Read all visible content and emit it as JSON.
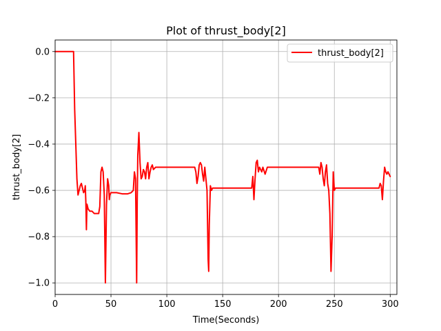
{
  "chart_data": {
    "type": "line",
    "title": "Plot of thrust_body[2]",
    "xlabel": "Time(Seconds)",
    "ylabel": "thrust_body[2]",
    "xlim": [
      0,
      306
    ],
    "ylim": [
      -1.05,
      0.05
    ],
    "xticks": [
      0,
      50,
      100,
      150,
      200,
      250,
      300
    ],
    "yticks": [
      0.0,
      -0.2,
      -0.4,
      -0.6,
      -0.8,
      -1.0
    ],
    "ytick_labels": [
      "0.0",
      "−0.2",
      "−0.4",
      "−0.6",
      "−0.8",
      "−1.0"
    ],
    "xtick_labels": [
      "0",
      "50",
      "100",
      "150",
      "200",
      "250",
      "300"
    ],
    "grid": true,
    "legend": "top-right",
    "colors": {
      "series": "#ff0000"
    },
    "series": [
      {
        "name": "thrust_body[2]",
        "points": [
          [
            0,
            0.0
          ],
          [
            15,
            0.0
          ],
          [
            16.5,
            0.0
          ],
          [
            17.5,
            -0.25
          ],
          [
            18.5,
            -0.4
          ],
          [
            19.5,
            -0.55
          ],
          [
            20.5,
            -0.62
          ],
          [
            21.5,
            -0.6
          ],
          [
            22.5,
            -0.58
          ],
          [
            23.5,
            -0.57
          ],
          [
            24.5,
            -0.59
          ],
          [
            25.5,
            -0.61
          ],
          [
            26.5,
            -0.6
          ],
          [
            27,
            -0.58
          ],
          [
            27.5,
            -0.65
          ],
          [
            28,
            -0.77
          ],
          [
            28.5,
            -0.66
          ],
          [
            29.5,
            -0.68
          ],
          [
            31,
            -0.69
          ],
          [
            33,
            -0.69
          ],
          [
            35,
            -0.7
          ],
          [
            37,
            -0.7
          ],
          [
            39,
            -0.7
          ],
          [
            40,
            -0.67
          ],
          [
            41,
            -0.52
          ],
          [
            42,
            -0.5
          ],
          [
            43,
            -0.52
          ],
          [
            44,
            -0.62
          ],
          [
            45,
            -1.0
          ],
          [
            46,
            -0.66
          ],
          [
            47,
            -0.55
          ],
          [
            48,
            -0.58
          ],
          [
            48.5,
            -0.64
          ],
          [
            49,
            -0.62
          ],
          [
            50,
            -0.61
          ],
          [
            55,
            -0.61
          ],
          [
            60,
            -0.615
          ],
          [
            65,
            -0.615
          ],
          [
            68,
            -0.61
          ],
          [
            70,
            -0.6
          ],
          [
            71,
            -0.52
          ],
          [
            72,
            -0.55
          ],
          [
            73,
            -1.0
          ],
          [
            73.5,
            -0.65
          ],
          [
            74,
            -0.45
          ],
          [
            75,
            -0.35
          ],
          [
            76,
            -0.48
          ],
          [
            77,
            -0.55
          ],
          [
            78,
            -0.54
          ],
          [
            79,
            -0.51
          ],
          [
            80,
            -0.52
          ],
          [
            81,
            -0.55
          ],
          [
            82,
            -0.5
          ],
          [
            83,
            -0.48
          ],
          [
            84,
            -0.55
          ],
          [
            85,
            -0.52
          ],
          [
            86,
            -0.5
          ],
          [
            87,
            -0.49
          ],
          [
            88,
            -0.51
          ],
          [
            90,
            -0.5
          ],
          [
            95,
            -0.5
          ],
          [
            100,
            -0.5
          ],
          [
            110,
            -0.5
          ],
          [
            120,
            -0.5
          ],
          [
            124,
            -0.5
          ],
          [
            125,
            -0.5
          ],
          [
            126,
            -0.52
          ],
          [
            127,
            -0.57
          ],
          [
            128,
            -0.54
          ],
          [
            129,
            -0.49
          ],
          [
            130,
            -0.48
          ],
          [
            131,
            -0.49
          ],
          [
            132,
            -0.53
          ],
          [
            133,
            -0.56
          ],
          [
            134,
            -0.5
          ],
          [
            135,
            -0.55
          ],
          [
            136,
            -0.6
          ],
          [
            137,
            -0.9
          ],
          [
            137.5,
            -0.95
          ],
          [
            138,
            -0.75
          ],
          [
            139,
            -0.58
          ],
          [
            140,
            -0.6
          ],
          [
            141,
            -0.59
          ],
          [
            145,
            -0.59
          ],
          [
            150,
            -0.59
          ],
          [
            160,
            -0.59
          ],
          [
            170,
            -0.59
          ],
          [
            176,
            -0.59
          ],
          [
            177,
            -0.54
          ],
          [
            178,
            -0.64
          ],
          [
            179,
            -0.55
          ],
          [
            180,
            -0.48
          ],
          [
            181,
            -0.47
          ],
          [
            182,
            -0.52
          ],
          [
            183,
            -0.5
          ],
          [
            184,
            -0.51
          ],
          [
            185,
            -0.52
          ],
          [
            186,
            -0.5
          ],
          [
            188,
            -0.53
          ],
          [
            190,
            -0.5
          ],
          [
            195,
            -0.5
          ],
          [
            200,
            -0.5
          ],
          [
            210,
            -0.5
          ],
          [
            220,
            -0.5
          ],
          [
            230,
            -0.5
          ],
          [
            236,
            -0.5
          ],
          [
            237,
            -0.53
          ],
          [
            238,
            -0.48
          ],
          [
            239,
            -0.5
          ],
          [
            240,
            -0.55
          ],
          [
            241,
            -0.58
          ],
          [
            242,
            -0.52
          ],
          [
            243,
            -0.49
          ],
          [
            244,
            -0.57
          ],
          [
            245,
            -0.6
          ],
          [
            246,
            -0.7
          ],
          [
            247,
            -0.95
          ],
          [
            248,
            -0.8
          ],
          [
            249,
            -0.52
          ],
          [
            250,
            -0.6
          ],
          [
            251,
            -0.59
          ],
          [
            255,
            -0.59
          ],
          [
            260,
            -0.59
          ],
          [
            270,
            -0.59
          ],
          [
            280,
            -0.59
          ],
          [
            290,
            -0.59
          ],
          [
            291,
            -0.57
          ],
          [
            292,
            -0.58
          ],
          [
            293,
            -0.64
          ],
          [
            294,
            -0.56
          ],
          [
            295,
            -0.5
          ],
          [
            296,
            -0.52
          ],
          [
            297,
            -0.53
          ],
          [
            298,
            -0.52
          ],
          [
            299,
            -0.53
          ],
          [
            300,
            -0.54
          ]
        ]
      }
    ]
  }
}
